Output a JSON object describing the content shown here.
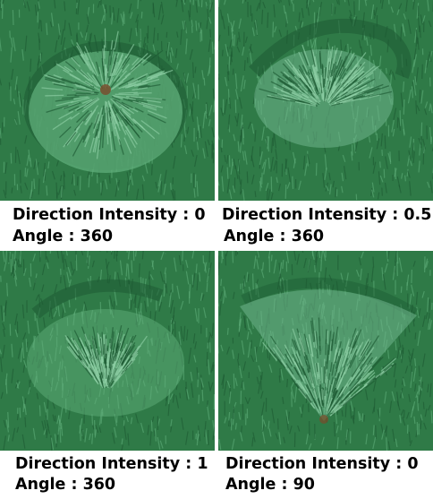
{
  "figure": {
    "panels": [
      {
        "direction_label": "Direction Intensity : 0",
        "angle_label": "Angle : 360",
        "direction_intensity": 0,
        "angle": 360
      },
      {
        "direction_label": "Direction Intensity : 0.5",
        "angle_label": "Angle : 360",
        "direction_intensity": 0.5,
        "angle": 360
      },
      {
        "direction_label": "Direction Intensity : 1",
        "angle_label": "Angle : 360",
        "direction_intensity": 1,
        "angle": 360
      },
      {
        "direction_label": "Direction Intensity : 0",
        "angle_label": "Angle : 90",
        "direction_intensity": 0,
        "angle": 90
      }
    ],
    "colors": {
      "grass_base": "#2f7a47",
      "grass_dark": "#1d5a33",
      "grass_light": "#5fae7a",
      "disturbed": "#6fb58c",
      "soil": "#7a4a2a"
    }
  }
}
